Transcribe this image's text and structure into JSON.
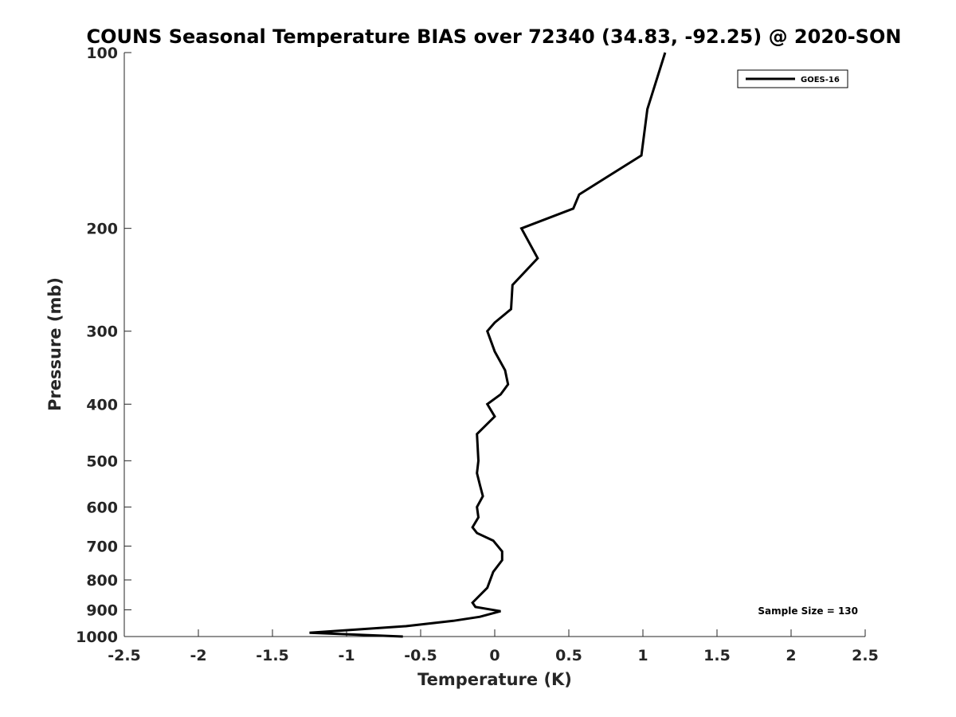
{
  "chart_data": {
    "type": "line",
    "title": "COUNS Seasonal Temperature BIAS over 72340 (34.83, -92.25) @ 2020-SON",
    "xlabel": "Temperature (K)",
    "ylabel": "Pressure (mb)",
    "xlim": [
      -2.5,
      2.5
    ],
    "ylim": [
      100,
      1000
    ],
    "y_scale": "log",
    "y_reversed": true,
    "x_ticks": [
      -2.5,
      -2,
      -1.5,
      -1,
      -0.5,
      0,
      0.5,
      1,
      1.5,
      2,
      2.5
    ],
    "x_tick_labels": [
      "-2.5",
      "-2",
      "-1.5",
      "-1",
      "-0.5",
      "0",
      "0.5",
      "1",
      "1.5",
      "2",
      "2.5"
    ],
    "y_ticks": [
      100,
      200,
      300,
      400,
      500,
      600,
      700,
      800,
      900,
      1000
    ],
    "y_tick_labels": [
      "100",
      "200",
      "300",
      "400",
      "500",
      "600",
      "700",
      "800",
      "900",
      "1000"
    ],
    "grid": false,
    "legend_position": "top-right",
    "series": [
      {
        "name": "GOES-16",
        "color": "#000000",
        "points": [
          {
            "x": 1.15,
            "p": 100
          },
          {
            "x": 1.03,
            "p": 125
          },
          {
            "x": 0.99,
            "p": 150
          },
          {
            "x": 0.57,
            "p": 175
          },
          {
            "x": 0.53,
            "p": 185
          },
          {
            "x": 0.18,
            "p": 200
          },
          {
            "x": 0.29,
            "p": 225
          },
          {
            "x": 0.12,
            "p": 250
          },
          {
            "x": 0.11,
            "p": 275
          },
          {
            "x": 0.0,
            "p": 290
          },
          {
            "x": -0.05,
            "p": 300
          },
          {
            "x": 0.0,
            "p": 325
          },
          {
            "x": 0.07,
            "p": 350
          },
          {
            "x": 0.09,
            "p": 370
          },
          {
            "x": 0.04,
            "p": 385
          },
          {
            "x": -0.05,
            "p": 400
          },
          {
            "x": 0.0,
            "p": 420
          },
          {
            "x": -0.12,
            "p": 450
          },
          {
            "x": -0.11,
            "p": 500
          },
          {
            "x": -0.12,
            "p": 525
          },
          {
            "x": -0.1,
            "p": 550
          },
          {
            "x": -0.08,
            "p": 575
          },
          {
            "x": -0.12,
            "p": 600
          },
          {
            "x": -0.11,
            "p": 625
          },
          {
            "x": -0.15,
            "p": 650
          },
          {
            "x": -0.12,
            "p": 665
          },
          {
            "x": -0.01,
            "p": 685
          },
          {
            "x": 0.05,
            "p": 715
          },
          {
            "x": 0.05,
            "p": 740
          },
          {
            "x": -0.01,
            "p": 775
          },
          {
            "x": -0.05,
            "p": 825
          },
          {
            "x": -0.15,
            "p": 875
          },
          {
            "x": -0.13,
            "p": 890
          },
          {
            "x": 0.04,
            "p": 905
          },
          {
            "x": -0.1,
            "p": 925
          },
          {
            "x": -0.28,
            "p": 940
          },
          {
            "x": -0.6,
            "p": 960
          },
          {
            "x": -1.25,
            "p": 985
          },
          {
            "x": -0.62,
            "p": 1000
          }
        ]
      }
    ],
    "annotation": "Sample Size = 130"
  }
}
